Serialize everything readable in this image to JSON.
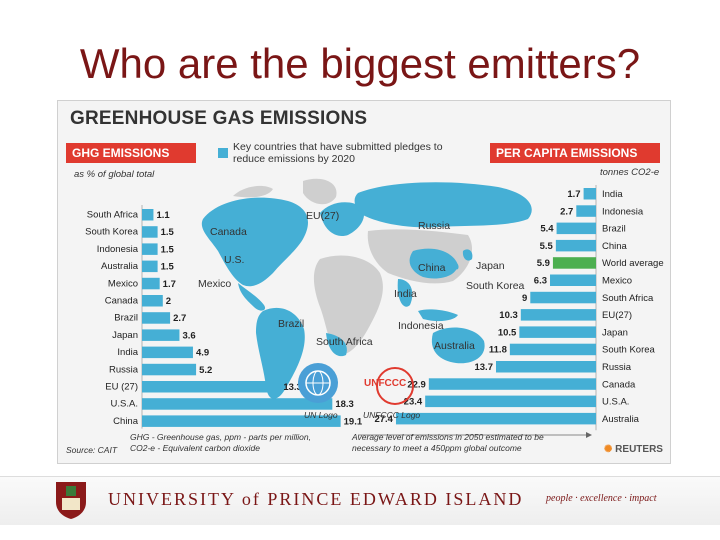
{
  "slide_title": "Who are the biggest emitters?",
  "infographic": {
    "heading": "GREENHOUSE GAS EMISSIONS",
    "legend_text": "Key countries that have submitted pledges to reduce emissions by 2020",
    "ghg_title": "GHG EMISSIONS",
    "ghg_subtitle": "as % of global total",
    "pc_title": "PER CAPITA EMISSIONS",
    "pc_subtitle": "tonnes CO2-e",
    "map_labels": [
      "EU(27)",
      "Canada",
      "Russia",
      "U.S.",
      "China",
      "Japan",
      "Mexico",
      "India",
      "South Korea",
      "Brazil",
      "Indonesia",
      "South Africa",
      "Australia"
    ],
    "un_logo_caption": "UN Logo",
    "unfccc_caption": "UNFCCC Logo",
    "unfccc_text": "UNFCCC",
    "footnote_left": "GHG - Greenhouse gas, ppm - parts per million, CO2-e - Equivalent carbon dioxide",
    "footnote_right": "Average level of emissions in 2050 estimated to be necessary to meet a 450ppm global outcome",
    "source": "Source: CAIT",
    "reuters": "REUTERS",
    "colors": {
      "bar": "#45afd5",
      "highlight": "#4caf50",
      "banner": "#e03a2f",
      "title": "#7a1616"
    }
  },
  "chart_data": [
    {
      "type": "bar",
      "title": "GHG EMISSIONS",
      "subtitle": "as % of global total",
      "orientation": "horizontal",
      "categories": [
        "South Africa",
        "South Korea",
        "Indonesia",
        "Australia",
        "Mexico",
        "Canada",
        "Brazil",
        "Japan",
        "India",
        "Russia",
        "EU (27)",
        "U.S.A.",
        "China"
      ],
      "values": [
        1.1,
        1.5,
        1.5,
        1.5,
        1.7,
        2,
        2.7,
        3.6,
        4.9,
        5.2,
        13.3,
        18.3,
        19.1
      ],
      "value_labels": [
        "1.1",
        "1.5",
        "1.5",
        "1.5",
        "1.7",
        "2",
        "2.7",
        "3.6",
        "4.9",
        "5.2",
        "13.3",
        "18.3",
        "19.1"
      ]
    },
    {
      "type": "bar",
      "title": "PER CAPITA EMISSIONS",
      "subtitle": "tonnes CO2-e",
      "orientation": "horizontal",
      "categories": [
        "India",
        "Indonesia",
        "Brazil",
        "China",
        "World average",
        "Mexico",
        "South Africa",
        "EU(27)",
        "Japan",
        "South Korea",
        "Russia",
        "Canada",
        "U.S.A.",
        "Australia"
      ],
      "values": [
        1.7,
        2.7,
        5.4,
        5.5,
        5.9,
        6.3,
        9,
        10.3,
        10.5,
        11.8,
        13.7,
        22.9,
        23.4,
        27.4
      ],
      "value_labels": [
        "1.7",
        "2.7",
        "5.4",
        "5.5",
        "5.9",
        "6.3",
        "9",
        "10.3",
        "10.5",
        "11.8",
        "13.7",
        "22.9",
        "23.4",
        "27.4"
      ],
      "highlight": "World average"
    }
  ],
  "university": {
    "name": "UNIVERSITY of PRINCE EDWARD ISLAND",
    "tagline": "people · excellence · impact"
  }
}
